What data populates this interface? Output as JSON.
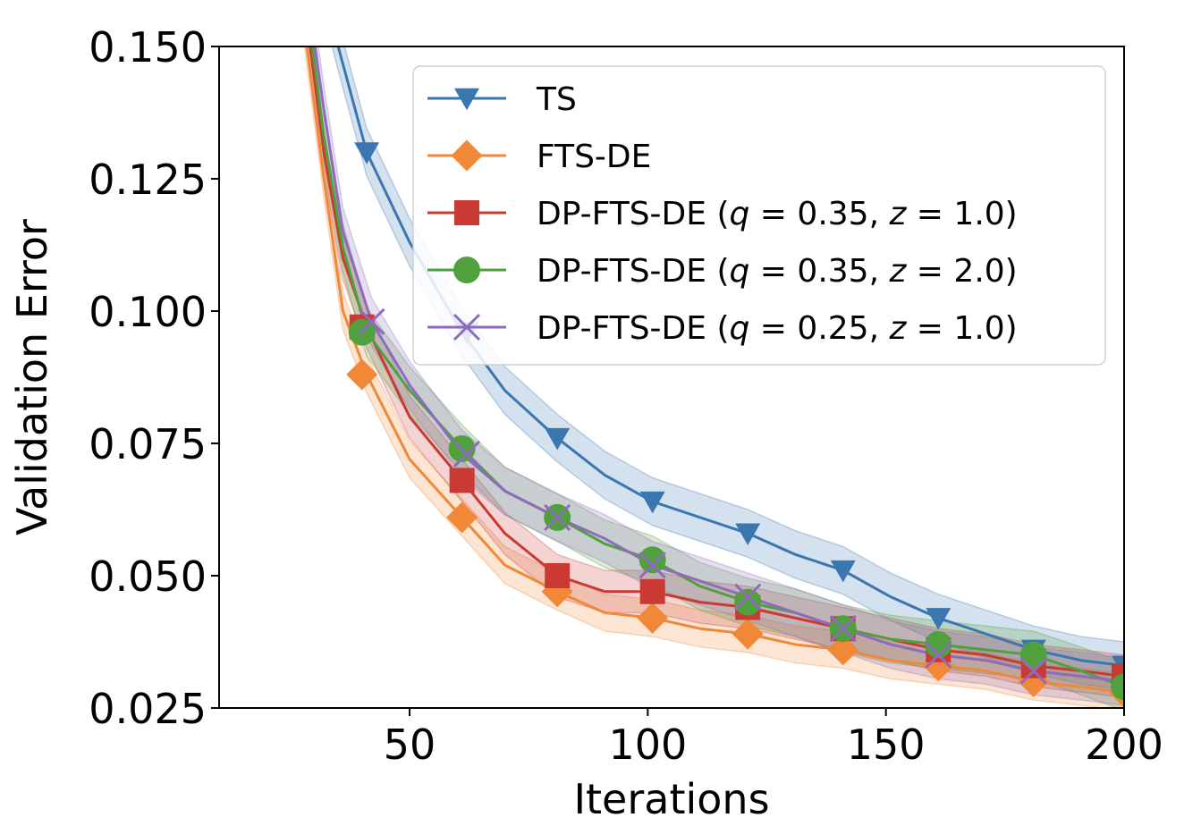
{
  "chart_data": {
    "type": "line",
    "title": "",
    "xlabel": "Iterations",
    "ylabel": "Validation Error",
    "xlim": [
      10,
      200
    ],
    "ylim": [
      0.025,
      0.15
    ],
    "xticks": [
      50,
      100,
      150,
      200
    ],
    "xtick_labels": [
      "50",
      "100",
      "150",
      "200"
    ],
    "yticks": [
      0.025,
      0.05,
      0.075,
      0.1,
      0.125,
      0.15
    ],
    "ytick_labels": [
      "0.025",
      "0.050",
      "0.075",
      "0.100",
      "0.125",
      "0.150"
    ],
    "grid": false,
    "legend_position": "top-right",
    "series": [
      {
        "name": "TS",
        "color": "#3a76b0",
        "marker": "triangle-down",
        "band": 0.0045,
        "x": [
          28,
          35,
          41,
          50,
          61,
          70,
          81,
          91,
          101,
          111,
          121,
          131,
          141,
          151,
          161,
          171,
          181,
          191,
          200
        ],
        "y": [
          0.175,
          0.15,
          0.13,
          0.113,
          0.096,
          0.085,
          0.076,
          0.069,
          0.064,
          0.061,
          0.058,
          0.054,
          0.051,
          0.046,
          0.042,
          0.039,
          0.036,
          0.034,
          0.033
        ],
        "marker_x": [
          41,
          62,
          81,
          101,
          121,
          141,
          161,
          181,
          200
        ],
        "marker_y": [
          0.13,
          0.096,
          0.076,
          0.064,
          0.058,
          0.051,
          0.042,
          0.036,
          0.033
        ]
      },
      {
        "name": "FTS-DE",
        "color": "#f08838",
        "marker": "diamond",
        "band": 0.0035,
        "x": [
          27,
          32,
          36,
          41,
          50,
          61,
          70,
          81,
          91,
          101,
          111,
          121,
          131,
          141,
          151,
          161,
          171,
          181,
          191,
          200
        ],
        "y": [
          0.16,
          0.125,
          0.1,
          0.088,
          0.072,
          0.061,
          0.052,
          0.047,
          0.043,
          0.042,
          0.04,
          0.039,
          0.037,
          0.036,
          0.034,
          0.033,
          0.032,
          0.03,
          0.029,
          0.028
        ],
        "marker_x": [
          40,
          61,
          81,
          101,
          121,
          141,
          161,
          181,
          200
        ],
        "marker_y": [
          0.088,
          0.061,
          0.047,
          0.042,
          0.039,
          0.036,
          0.033,
          0.03,
          0.028
        ]
      },
      {
        "name": "DP-FTS-DE (q = 0.35, z = 1.0)",
        "legend_prefix": "DP-FTS-DE (",
        "legend_q": "0.35",
        "legend_z": "1.0",
        "color": "#c93a32",
        "marker": "square",
        "band": 0.004,
        "x": [
          27,
          32,
          36,
          41,
          50,
          61,
          70,
          81,
          91,
          101,
          111,
          121,
          131,
          141,
          151,
          161,
          171,
          181,
          191,
          200
        ],
        "y": [
          0.165,
          0.13,
          0.11,
          0.097,
          0.08,
          0.068,
          0.058,
          0.05,
          0.047,
          0.047,
          0.045,
          0.044,
          0.042,
          0.04,
          0.038,
          0.036,
          0.035,
          0.033,
          0.032,
          0.031
        ],
        "marker_x": [
          40,
          61,
          81,
          101,
          121,
          141,
          161,
          181,
          200
        ],
        "marker_y": [
          0.097,
          0.068,
          0.05,
          0.047,
          0.044,
          0.04,
          0.036,
          0.033,
          0.031
        ]
      },
      {
        "name": "DP-FTS-DE (q = 0.35, z = 2.0)",
        "legend_prefix": "DP-FTS-DE (",
        "legend_q": "0.35",
        "legend_z": "2.0",
        "color": "#51a03e",
        "marker": "circle",
        "band": 0.0045,
        "x": [
          27,
          32,
          36,
          41,
          50,
          61,
          70,
          81,
          91,
          101,
          111,
          121,
          131,
          141,
          151,
          161,
          171,
          181,
          191,
          200
        ],
        "y": [
          0.168,
          0.133,
          0.112,
          0.096,
          0.085,
          0.074,
          0.066,
          0.061,
          0.056,
          0.053,
          0.048,
          0.045,
          0.043,
          0.04,
          0.038,
          0.037,
          0.036,
          0.035,
          0.032,
          0.029
        ],
        "marker_x": [
          40,
          61,
          81,
          101,
          121,
          141,
          161,
          181,
          200
        ],
        "marker_y": [
          0.096,
          0.074,
          0.061,
          0.053,
          0.045,
          0.04,
          0.037,
          0.035,
          0.029
        ]
      },
      {
        "name": "DP-FTS-DE (q = 0.25, z = 1.0)",
        "legend_prefix": "DP-FTS-DE (",
        "legend_q": "0.25",
        "legend_z": "1.0",
        "color": "#8f6bbd",
        "marker": "x",
        "band": 0.0045,
        "x": [
          27,
          32,
          36,
          42,
          50,
          61,
          70,
          81,
          91,
          101,
          111,
          121,
          131,
          141,
          151,
          161,
          171,
          181,
          191,
          200
        ],
        "y": [
          0.17,
          0.138,
          0.115,
          0.098,
          0.086,
          0.073,
          0.066,
          0.061,
          0.057,
          0.052,
          0.049,
          0.046,
          0.043,
          0.04,
          0.037,
          0.035,
          0.034,
          0.032,
          0.031,
          0.03
        ],
        "marker_x": [
          42,
          62,
          81,
          101,
          121,
          141,
          161,
          181
        ],
        "marker_y": [
          0.098,
          0.073,
          0.061,
          0.052,
          0.046,
          0.04,
          0.035,
          0.032
        ]
      }
    ]
  }
}
